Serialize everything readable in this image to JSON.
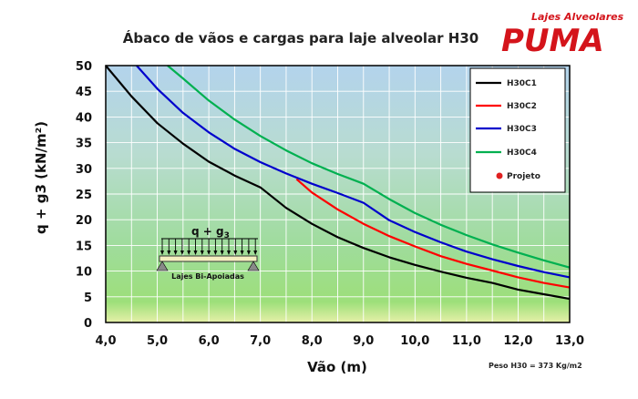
{
  "brand": {
    "tagline": "Lajes Alveolares",
    "name": "PUMA"
  },
  "chart_data": {
    "type": "line",
    "title": "Ábaco de vãos e cargas para laje alveolar H30",
    "xlabel": "Vão (m)",
    "ylabel": "q + g3 (kN/m²)",
    "xlim": [
      4.0,
      13.0
    ],
    "ylim": [
      0,
      50
    ],
    "xticks": [
      "4,0",
      "5,0",
      "6,0",
      "7,0",
      "8,0",
      "9,0",
      "10,0",
      "11,0",
      "12,0",
      "13,0"
    ],
    "yticks": [
      "0",
      "5",
      "10",
      "15",
      "20",
      "25",
      "30",
      "35",
      "40",
      "45",
      "50"
    ],
    "grid": true,
    "legend_position": "top-right",
    "series": [
      {
        "name": "H30C1",
        "color": "#000000",
        "x": [
          4.0,
          4.5,
          5.0,
          5.5,
          6.0,
          6.5,
          7.0,
          7.5,
          8.0,
          8.5,
          9.0,
          9.5,
          10.0,
          10.5,
          11.0,
          11.5,
          12.0,
          12.5,
          13.0
        ],
        "y": [
          50,
          44,
          38.8,
          34.8,
          31.3,
          28.6,
          26.3,
          22.3,
          19.2,
          16.6,
          14.5,
          12.7,
          11.2,
          9.9,
          8.7,
          7.7,
          6.4,
          5.5,
          4.6
        ]
      },
      {
        "name": "H30C2",
        "color": "#ff0000",
        "x": [
          7.7,
          8.0,
          8.5,
          9.0,
          9.5,
          10.0,
          10.5,
          11.0,
          11.5,
          12.0,
          12.5,
          13.0
        ],
        "y": [
          27.9,
          25.3,
          22.0,
          19.2,
          16.8,
          14.8,
          12.9,
          11.4,
          10.1,
          8.8,
          7.7,
          6.8
        ]
      },
      {
        "name": "H30C3",
        "color": "#0000cc",
        "x": [
          4.6,
          5.0,
          5.5,
          6.0,
          6.5,
          7.0,
          7.5,
          8.0,
          8.5,
          9.0,
          9.5,
          10.0,
          10.5,
          11.0,
          11.5,
          12.0,
          12.5,
          13.0
        ],
        "y": [
          50,
          45.5,
          40.8,
          37.0,
          33.8,
          31.2,
          29.0,
          27.0,
          25.2,
          23.3,
          19.9,
          17.6,
          15.6,
          13.8,
          12.3,
          11.0,
          9.8,
          8.8
        ]
      },
      {
        "name": "H30C4",
        "color": "#00b050",
        "x": [
          5.2,
          5.5,
          6.0,
          6.5,
          7.0,
          7.5,
          8.0,
          8.5,
          9.0,
          9.5,
          10.0,
          10.5,
          11.0,
          11.5,
          12.0,
          12.5,
          13.0
        ],
        "y": [
          50,
          47.5,
          43.2,
          39.5,
          36.3,
          33.5,
          31.0,
          28.9,
          27.0,
          24.0,
          21.3,
          19.0,
          17.0,
          15.2,
          13.6,
          12.1,
          10.7
        ]
      }
    ],
    "legend_extra": {
      "name": "Projeto",
      "color": "#e02020"
    },
    "inset": {
      "load_prefix": "q + g",
      "load_subscript": "3",
      "caption": "Lajes Bi-Apoiadas"
    },
    "footnote": "Peso H30  = 373 Kg/m2"
  }
}
